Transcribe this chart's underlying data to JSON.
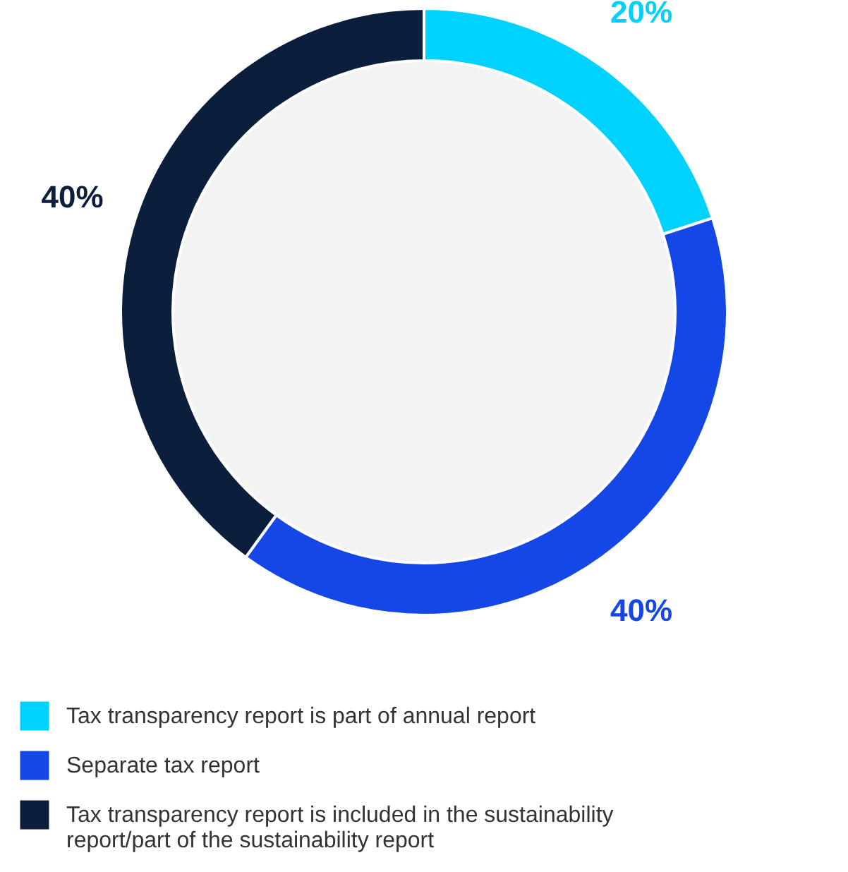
{
  "chart_data": {
    "type": "donut",
    "categories": [
      "Tax transparency report is part of annual report",
      "Separate tax report",
      "Tax transparency report is included in the sustainability report/part of the sustainability report"
    ],
    "values": [
      20,
      40,
      40
    ],
    "colors": [
      "#00d2ff",
      "#1447e6",
      "#0b1f3d"
    ],
    "value_labels": [
      "20%",
      "40%",
      "40%"
    ],
    "legend": "bottom"
  }
}
